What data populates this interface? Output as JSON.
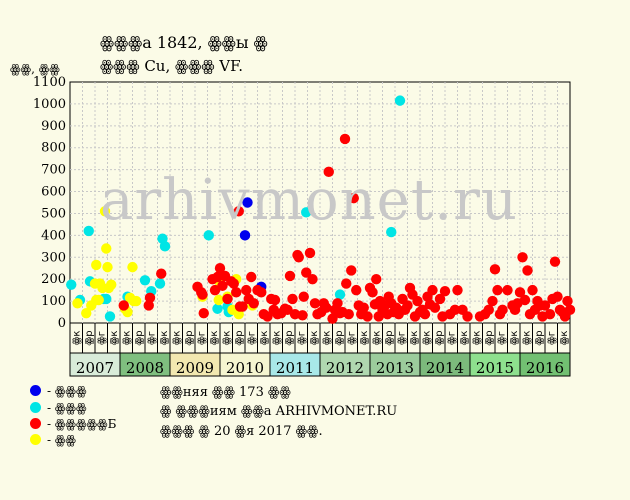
{
  "title": "ꙮꙮꙮа 1842, ꙮꙮы ꙮ",
  "subtitle": "ꙮꙮꙮ Cu, ꙮꙮꙮ VF.",
  "ylabel": "ꙮꙮ, ꙮꙮ",
  "watermark": "arhivmonet.ru",
  "legend": [
    {
      "label": "- ꙮꙮꙮ",
      "color": "#0000ee"
    },
    {
      "label": "- ꙮꙮꙮ",
      "color": "#00e5e5"
    },
    {
      "label": "- ꙮꙮꙮꙮꙮБ",
      "color": "#ff0000"
    },
    {
      "label": "- ꙮꙮ",
      "color": "#ffff00"
    }
  ],
  "notes": [
    "ꙮꙮняя ꙮꙮ 173 ꙮꙮ",
    "ꙮ ꙮꙮꙮиям ꙮꙮа ARHIVMONET.RU",
    "ꙮꙮꙮ ꙮ 20 ꙮя 2017 ꙮꙮ."
  ],
  "chart_data": {
    "type": "scatter",
    "ylim": [
      0,
      1100
    ],
    "yticks": [
      0,
      100,
      200,
      300,
      400,
      500,
      600,
      700,
      800,
      900,
      1000,
      1100
    ],
    "x_unit": "quarter index from start of 2007",
    "xlim": [
      0,
      40
    ],
    "quarter_labels": [
      "ꙮк",
      "ꙮр",
      "ꙮг",
      "ꙮк"
    ],
    "years": [
      {
        "label": "2007",
        "color": "#d9ecd9"
      },
      {
        "label": "2008",
        "color": "#7fbf7f"
      },
      {
        "label": "2009",
        "color": "#f2e8b0"
      },
      {
        "label": "2010",
        "color": "#f5f5d0"
      },
      {
        "label": "2011",
        "color": "#a8e8e8"
      },
      {
        "label": "2012",
        "color": "#b0d8b0"
      },
      {
        "label": "2013",
        "color": "#9ccc9c"
      },
      {
        "label": "2014",
        "color": "#7cba7c"
      },
      {
        "label": "2015",
        "color": "#8ee08e"
      },
      {
        "label": "2016",
        "color": "#72c072"
      }
    ],
    "grid": true,
    "series": [
      {
        "color": "#0000ee",
        "points": [
          [
            14.2,
            550
          ],
          [
            14.0,
            400
          ],
          [
            15.3,
            165
          ]
        ]
      },
      {
        "color": "#00e5e5",
        "points": [
          [
            0.1,
            175
          ],
          [
            0.8,
            105
          ],
          [
            1.5,
            420
          ],
          [
            1.6,
            190
          ],
          [
            2.7,
            110
          ],
          [
            2.9,
            110
          ],
          [
            3.2,
            30
          ],
          [
            4.6,
            120
          ],
          [
            6.0,
            195
          ],
          [
            6.5,
            145
          ],
          [
            7.2,
            180
          ],
          [
            7.4,
            385
          ],
          [
            7.6,
            350
          ],
          [
            11.1,
            400
          ],
          [
            11.8,
            65
          ],
          [
            12.7,
            50
          ],
          [
            12.6,
            75
          ],
          [
            13.3,
            60
          ],
          [
            18.9,
            505
          ],
          [
            21.6,
            130
          ],
          [
            25.7,
            415
          ],
          [
            26.4,
            1015
          ]
        ]
      },
      {
        "color": "#ffff00",
        "points": [
          [
            0.6,
            90
          ],
          [
            1.3,
            45
          ],
          [
            1.7,
            80
          ],
          [
            2.0,
            180
          ],
          [
            2.1,
            105
          ],
          [
            2.1,
            265
          ],
          [
            2.3,
            105
          ],
          [
            2.4,
            180
          ],
          [
            2.6,
            160
          ],
          [
            2.8,
            510
          ],
          [
            2.9,
            340
          ],
          [
            3.0,
            255
          ],
          [
            3.1,
            160
          ],
          [
            3.3,
            175
          ],
          [
            4.4,
            65
          ],
          [
            4.6,
            50
          ],
          [
            4.8,
            115
          ],
          [
            5.0,
            255
          ],
          [
            5.1,
            100
          ],
          [
            5.3,
            100
          ],
          [
            10.6,
            120
          ],
          [
            11.9,
            105
          ],
          [
            12.0,
            185
          ],
          [
            12.6,
            120
          ],
          [
            13.0,
            60
          ],
          [
            13.3,
            200
          ],
          [
            13.5,
            40
          ],
          [
            14.6,
            80
          ]
        ]
      },
      {
        "color": "#ff0000",
        "points": [
          [
            4.3,
            80
          ],
          [
            6.3,
            80
          ],
          [
            6.4,
            115
          ],
          [
            7.3,
            225
          ],
          [
            10.2,
            165
          ],
          [
            10.7,
            45
          ],
          [
            10.5,
            140
          ],
          [
            10.6,
            130
          ],
          [
            11.4,
            200
          ],
          [
            11.6,
            150
          ],
          [
            11.8,
            210
          ],
          [
            12.0,
            250
          ],
          [
            12.2,
            170
          ],
          [
            12.4,
            215
          ],
          [
            12.6,
            110
          ],
          [
            12.9,
            190
          ],
          [
            13.1,
            180
          ],
          [
            13.3,
            140
          ],
          [
            13.5,
            510
          ],
          [
            13.6,
            75
          ],
          [
            13.8,
            75
          ],
          [
            14.1,
            150
          ],
          [
            14.3,
            110
          ],
          [
            14.5,
            210
          ],
          [
            14.7,
            90
          ],
          [
            15.0,
            150
          ],
          [
            15.3,
            140
          ],
          [
            15.5,
            40
          ],
          [
            15.8,
            30
          ],
          [
            16.1,
            110
          ],
          [
            16.3,
            60
          ],
          [
            16.4,
            105
          ],
          [
            16.6,
            40
          ],
          [
            16.9,
            45
          ],
          [
            17.2,
            65
          ],
          [
            17.4,
            60
          ],
          [
            17.6,
            215
          ],
          [
            17.8,
            110
          ],
          [
            18.0,
            40
          ],
          [
            18.2,
            310
          ],
          [
            18.3,
            300
          ],
          [
            18.6,
            35
          ],
          [
            18.7,
            120
          ],
          [
            18.9,
            230
          ],
          [
            19.2,
            320
          ],
          [
            19.4,
            200
          ],
          [
            19.6,
            90
          ],
          [
            19.8,
            40
          ],
          [
            20.1,
            50
          ],
          [
            20.3,
            90
          ],
          [
            20.5,
            70
          ],
          [
            20.7,
            690
          ],
          [
            21.0,
            20
          ],
          [
            21.2,
            60
          ],
          [
            21.4,
            90
          ],
          [
            21.6,
            45
          ],
          [
            21.8,
            50
          ],
          [
            22.0,
            840
          ],
          [
            22.1,
            180
          ],
          [
            22.3,
            40
          ],
          [
            22.5,
            240
          ],
          [
            22.7,
            570
          ],
          [
            22.9,
            150
          ],
          [
            23.1,
            80
          ],
          [
            23.3,
            40
          ],
          [
            23.5,
            70
          ],
          [
            23.8,
            30
          ],
          [
            24.0,
            160
          ],
          [
            24.2,
            140
          ],
          [
            24.4,
            85
          ],
          [
            24.5,
            200
          ],
          [
            24.7,
            30
          ],
          [
            24.8,
            100
          ],
          [
            25.0,
            60
          ],
          [
            25.2,
            80
          ],
          [
            25.4,
            40
          ],
          [
            25.5,
            120
          ],
          [
            25.7,
            90
          ],
          [
            25.9,
            50
          ],
          [
            26.1,
            70
          ],
          [
            26.3,
            40
          ],
          [
            26.6,
            110
          ],
          [
            26.8,
            60
          ],
          [
            27.0,
            80
          ],
          [
            27.2,
            160
          ],
          [
            27.4,
            130
          ],
          [
            27.6,
            30
          ],
          [
            27.8,
            100
          ],
          [
            28.0,
            50
          ],
          [
            28.2,
            60
          ],
          [
            28.4,
            40
          ],
          [
            28.6,
            120
          ],
          [
            28.8,
            85
          ],
          [
            29.0,
            150
          ],
          [
            29.2,
            70
          ],
          [
            29.6,
            110
          ],
          [
            29.8,
            30
          ],
          [
            30.0,
            145
          ],
          [
            30.4,
            40
          ],
          [
            30.8,
            60
          ],
          [
            31.0,
            150
          ],
          [
            31.4,
            60
          ],
          [
            31.8,
            30
          ],
          [
            32.8,
            30
          ],
          [
            33.2,
            40
          ],
          [
            33.5,
            60
          ],
          [
            33.8,
            100
          ],
          [
            34.0,
            245
          ],
          [
            34.2,
            150
          ],
          [
            34.4,
            40
          ],
          [
            34.6,
            60
          ],
          [
            35.0,
            150
          ],
          [
            35.4,
            80
          ],
          [
            35.6,
            60
          ],
          [
            35.8,
            90
          ],
          [
            36.0,
            140
          ],
          [
            36.2,
            300
          ],
          [
            36.4,
            105
          ],
          [
            36.6,
            240
          ],
          [
            36.8,
            40
          ],
          [
            37.0,
            150
          ],
          [
            37.2,
            60
          ],
          [
            37.4,
            100
          ],
          [
            37.6,
            80
          ],
          [
            37.8,
            30
          ],
          [
            38.0,
            80
          ],
          [
            38.4,
            40
          ],
          [
            38.6,
            110
          ],
          [
            38.8,
            280
          ],
          [
            39.0,
            120
          ],
          [
            39.2,
            60
          ],
          [
            39.4,
            50
          ],
          [
            39.6,
            30
          ],
          [
            39.8,
            100
          ],
          [
            40.0,
            60
          ]
        ]
      }
    ]
  }
}
